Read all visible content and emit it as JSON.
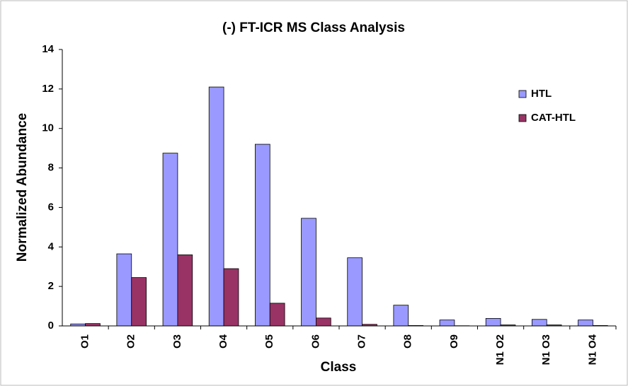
{
  "chart_data": {
    "type": "bar",
    "title": "(-) FT-ICR MS Class Analysis",
    "x_label": "Class",
    "y_label": "Normalized Abundance",
    "categories": [
      "O1",
      "O2",
      "O3",
      "O4",
      "O5",
      "O6",
      "O7",
      "O8",
      "O9",
      "N1 O2",
      "N1 O3",
      "N1 O4"
    ],
    "series": [
      {
        "name": "HTL",
        "color": "#9999ff",
        "values": [
          0.1,
          3.65,
          8.75,
          12.1,
          9.2,
          5.45,
          3.45,
          1.05,
          0.3,
          0.38,
          0.33,
          0.3
        ]
      },
      {
        "name": "CAT-HTL",
        "color": "#993366",
        "values": [
          0.12,
          2.45,
          3.6,
          2.9,
          1.15,
          0.4,
          0.08,
          0.02,
          0.01,
          0.05,
          0.05,
          0.02
        ]
      }
    ],
    "ylim": [
      0,
      14
    ],
    "yticks": [
      0,
      2,
      4,
      6,
      8,
      10,
      12,
      14
    ],
    "grid": false,
    "legend": "right"
  }
}
